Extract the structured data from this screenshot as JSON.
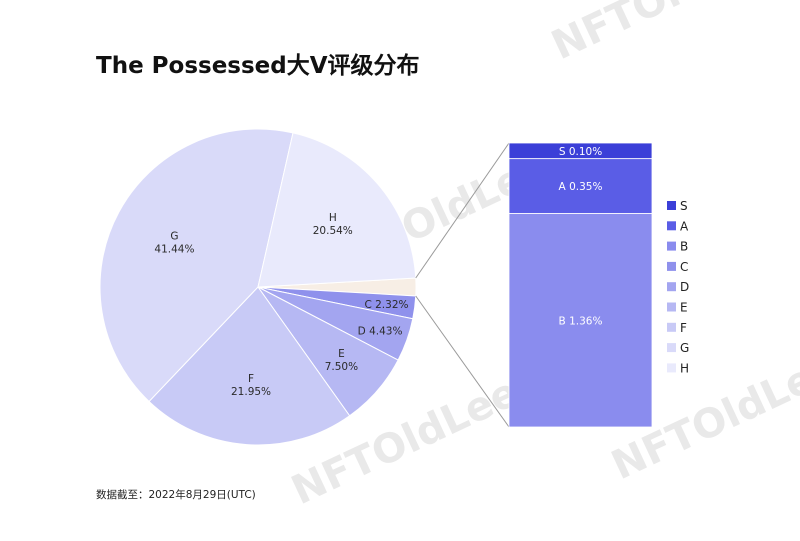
{
  "title": "The Possessed大V评级分布",
  "footnote": "数据截至：2022年8月29日(UTC)",
  "watermark": "NFTOldLee",
  "chart_data": {
    "type": "pie",
    "title": "The Possessed大V评级分布",
    "slices": [
      {
        "label": "S",
        "value": 0.1,
        "color": "#3b3fd8"
      },
      {
        "label": "A",
        "value": 0.35,
        "color": "#5a5de6"
      },
      {
        "label": "B",
        "value": 1.36,
        "color": "#8a8cee"
      },
      {
        "label": "C",
        "value": 2.32,
        "color": "#8f91ec"
      },
      {
        "label": "D",
        "value": 4.43,
        "color": "#a3a5f0"
      },
      {
        "label": "E",
        "value": 7.5,
        "color": "#b6b8f3"
      },
      {
        "label": "F",
        "value": 21.95,
        "color": "#c8caf6"
      },
      {
        "label": "G",
        "value": 41.44,
        "color": "#d9daf9"
      },
      {
        "label": "H",
        "value": 20.54,
        "color": "#e9eafc"
      }
    ],
    "slice_labels": {
      "C": "C 2.32%",
      "D": "D 4.43%",
      "E": "E\n7.50%",
      "F": "F\n21.95%",
      "G": "G\n41.44%",
      "H": "H\n20.54%"
    },
    "breakout": {
      "type": "stacked-bar",
      "slices": [
        "B",
        "A",
        "S"
      ],
      "labels": {
        "S": "S 0.10%",
        "A": "A 0.35%",
        "B": "B 1.36%"
      }
    },
    "legend": {
      "position": "right",
      "items": [
        "S",
        "A",
        "B",
        "C",
        "D",
        "E",
        "F",
        "G",
        "H"
      ]
    },
    "label_color": "#2a2a2a",
    "bar_label_color": "#ffffff",
    "connector_color": "#9a9a9a"
  }
}
